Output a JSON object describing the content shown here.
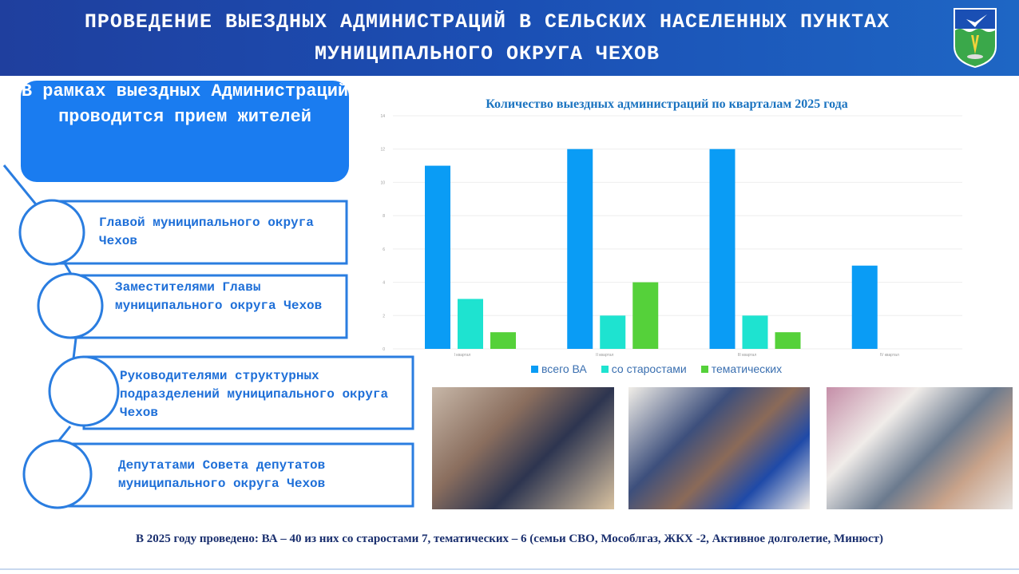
{
  "header": {
    "title": "ПРОВЕДЕНИЕ ВЫЕЗДНЫХ АДМИНИСТРАЦИЙ В СЕЛЬСКИХ НАСЕЛЕННЫХ ПУНКТАХ МУНИЦИПАЛЬНОГО ОКРУГА ЧЕХОВ",
    "logo": "coat-of-arms-chekhov"
  },
  "lead": "В рамках выездных Администраций проводится прием жителей",
  "items": [
    {
      "label": "Главой муниципального округа Чехов"
    },
    {
      "label": "Заместителями Главы муниципального округа Чехов"
    },
    {
      "label": "Руководителями структурных подразделений муниципального округа Чехов"
    },
    {
      "label": "Депутатами Совета депутатов муниципального округа Чехов"
    }
  ],
  "chart_data": {
    "type": "bar",
    "title": "Количество выездных администраций по кварталам 2025 года",
    "categories": [
      "I квартал",
      "II квартал",
      "III квартал",
      "IV квартал"
    ],
    "series": [
      {
        "name": "всего ВА",
        "values": [
          11,
          12,
          12,
          5
        ],
        "color": "#0a9cf5"
      },
      {
        "name": "со старостами",
        "values": [
          3,
          2,
          2,
          0
        ],
        "color": "#1ee3d0"
      },
      {
        "name": "тематических",
        "values": [
          1,
          4,
          1,
          0
        ],
        "color": "#55d13a"
      }
    ],
    "ylim": [
      0,
      14
    ],
    "yticks": [
      0,
      2,
      4,
      6,
      8,
      10,
      12,
      14
    ],
    "grid": true,
    "legend": "bottom"
  },
  "photos": [
    "photo-reception-1",
    "photo-reception-2",
    "photo-reception-3"
  ],
  "footer": "В 2025 году проведено: ВА – 40 из них со старостами 7, тематических – 6 (семьи СВО, Мособлгаз, ЖКХ -2, Активное долголетие, Минюст)"
}
